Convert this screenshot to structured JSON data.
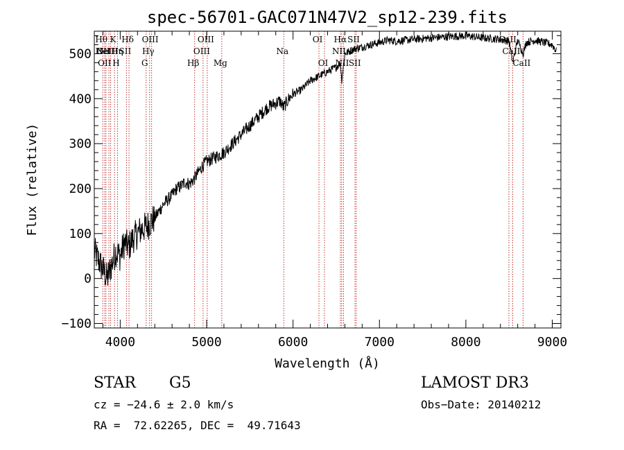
{
  "chart_data": {
    "type": "line",
    "title": "spec-56701-GAC071N47V2_sp12-239.fits",
    "xlabel": "Wavelength (Å)",
    "ylabel": "Flux (relative)",
    "xlim": [
      3700,
      9100
    ],
    "ylim": [
      -110,
      550
    ],
    "xticks": [
      4000,
      5000,
      6000,
      7000,
      8000,
      9000
    ],
    "yticks": [
      -100,
      0,
      100,
      200,
      300,
      400,
      500
    ],
    "series": [
      {
        "name": "flux",
        "x": [
          3700,
          3750,
          3800,
          3850,
          3900,
          3950,
          4000,
          4050,
          4100,
          4150,
          4200,
          4250,
          4300,
          4350,
          4400,
          4450,
          4500,
          4550,
          4600,
          4650,
          4700,
          4750,
          4800,
          4850,
          4900,
          4950,
          5000,
          5050,
          5100,
          5150,
          5200,
          5300,
          5400,
          5500,
          5600,
          5700,
          5800,
          5850,
          5890,
          5950,
          6000,
          6100,
          6200,
          6300,
          6400,
          6500,
          6550,
          6563,
          6600,
          6650,
          6700,
          6800,
          6900,
          7000,
          7100,
          7200,
          7400,
          7600,
          7800,
          8000,
          8200,
          8400,
          8500,
          8542,
          8600,
          8662,
          8700,
          8800,
          8900,
          9000,
          9050
        ],
        "y": [
          60,
          40,
          20,
          0,
          30,
          60,
          50,
          80,
          70,
          90,
          100,
          110,
          115,
          125,
          135,
          150,
          165,
          175,
          185,
          200,
          205,
          215,
          210,
          220,
          235,
          250,
          260,
          265,
          270,
          275,
          280,
          300,
          320,
          340,
          360,
          380,
          390,
          395,
          380,
          400,
          410,
          420,
          440,
          450,
          460,
          470,
          480,
          440,
          500,
          505,
          510,
          515,
          520,
          525,
          530,
          528,
          532,
          535,
          538,
          540,
          535,
          532,
          528,
          480,
          530,
          500,
          525,
          530,
          525,
          520,
          505
        ]
      }
    ],
    "lines": [
      {
        "wl": 3798,
        "labels": [
          "Hθ"
        ],
        "row": 1
      },
      {
        "wl": 3820,
        "labels": [
          "OII"
        ],
        "row": 2
      },
      {
        "wl": 3835,
        "labels": [
          "OII"
        ],
        "row": 3
      },
      {
        "wl": 3869,
        "labels": [
          "NeIII"
        ],
        "row": 2
      },
      {
        "wl": 3889,
        "labels": [
          "HeI",
          "Hη"
        ],
        "row": 2
      },
      {
        "wl": 3934,
        "labels": [
          "K"
        ],
        "row": 1
      },
      {
        "wl": 3969,
        "labels": [
          "H"
        ],
        "row": 3
      },
      {
        "wl": 4072,
        "labels": [
          "SII"
        ],
        "row": 2
      },
      {
        "wl": 4102,
        "labels": [
          "Hδ"
        ],
        "row": 1
      },
      {
        "wl": 4300,
        "labels": [
          "G"
        ],
        "row": 3
      },
      {
        "wl": 4340,
        "labels": [
          "Hγ"
        ],
        "row": 2
      },
      {
        "wl": 4363,
        "labels": [
          "OIII"
        ],
        "row": 1
      },
      {
        "wl": 4861,
        "labels": [
          "Hβ"
        ],
        "row": 3
      },
      {
        "wl": 4959,
        "labels": [
          "OIII"
        ],
        "row": 2
      },
      {
        "wl": 5007,
        "labels": [
          "OIII"
        ],
        "row": 1
      },
      {
        "wl": 5175,
        "labels": [
          "Mg"
        ],
        "row": 3
      },
      {
        "wl": 5893,
        "labels": [
          "Na"
        ],
        "row": 2
      },
      {
        "wl": 6300,
        "labels": [
          "OI"
        ],
        "row": 1
      },
      {
        "wl": 6364,
        "labels": [
          "OI"
        ],
        "row": 3
      },
      {
        "wl": 6548,
        "labels": [
          "NII"
        ],
        "row": 2
      },
      {
        "wl": 6563,
        "labels": [
          "Hα"
        ],
        "row": 1
      },
      {
        "wl": 6584,
        "labels": [
          "NII"
        ],
        "row": 3
      },
      {
        "wl": 6717,
        "labels": [
          "SII"
        ],
        "row": 1
      },
      {
        "wl": 6731,
        "labels": [
          "SII"
        ],
        "row": 3
      },
      {
        "wl": 8498,
        "labels": [
          "CaII"
        ],
        "row": 1
      },
      {
        "wl": 8542,
        "labels": [
          "CaII"
        ],
        "row": 2
      },
      {
        "wl": 8662,
        "labels": [
          "CaII"
        ],
        "row": 3
      }
    ]
  },
  "info": {
    "object_class": "STAR",
    "subclass": "G5",
    "survey": "LAMOST DR3",
    "cz": "cz = −24.6 ± 2.0 km/s",
    "obs_date": "Obs−Date: 20140212",
    "coords": "RA =  72.62265, DEC =  49.71643"
  },
  "colors": {
    "line_marker": "#c03030",
    "spectrum": "#000000"
  }
}
